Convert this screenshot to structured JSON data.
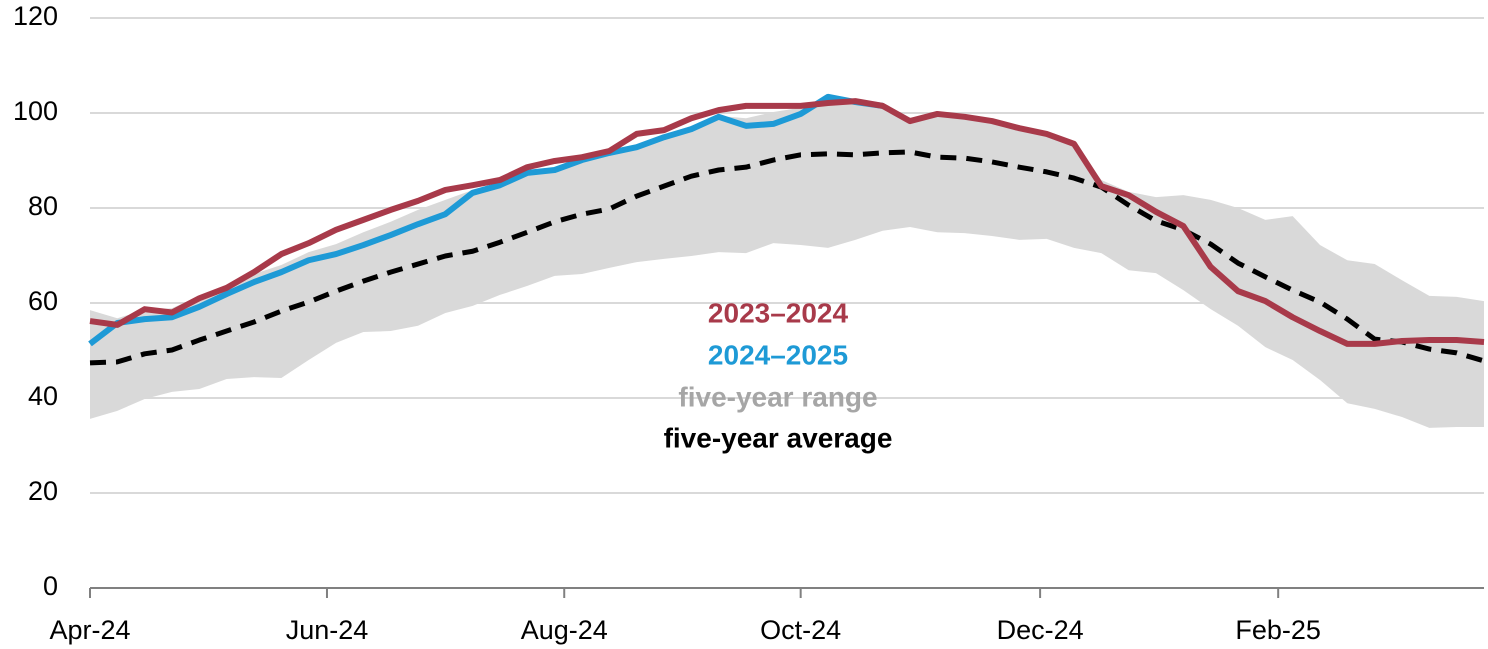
{
  "chart_data": {
    "type": "line",
    "x": [
      0,
      1,
      2,
      3,
      4,
      5,
      6,
      7,
      8,
      9,
      10,
      11,
      12,
      13,
      14,
      15,
      16,
      17,
      18,
      19,
      20,
      21,
      22,
      23,
      24,
      25,
      26,
      27,
      28,
      29,
      30,
      31,
      32,
      33,
      34,
      35,
      36,
      37,
      38,
      39,
      40,
      41,
      42,
      43,
      44,
      45,
      46,
      47,
      48,
      49,
      50,
      51
    ],
    "xlim": [
      0,
      51
    ],
    "xticks": [
      {
        "value": 0,
        "label": "Apr-24"
      },
      {
        "value": 8.67,
        "label": "Jun-24"
      },
      {
        "value": 17.35,
        "label": "Aug-24"
      },
      {
        "value": 26,
        "label": "Oct-24"
      },
      {
        "value": 34.76,
        "label": "Dec-24"
      },
      {
        "value": 43.47,
        "label": "Feb-25"
      }
    ],
    "ylim": [
      0,
      120
    ],
    "yticks": [
      0,
      20,
      40,
      60,
      80,
      100,
      120
    ],
    "grid": true,
    "series": [
      {
        "name": "2023–2024",
        "color": "#a83a4a",
        "values": [
          56.2,
          55.4,
          58.7,
          58,
          61,
          63.2,
          66.5,
          70.3,
          72.6,
          75.4,
          77.5,
          79.6,
          81.5,
          83.8,
          84.8,
          85.9,
          88.6,
          89.9,
          90.7,
          92,
          95.6,
          96.4,
          98.9,
          100.6,
          101.5,
          101.5,
          101.5,
          102.1,
          102.5,
          101.5,
          98.3,
          99.8,
          99.2,
          98.3,
          96.8,
          95.6,
          93.5,
          84.6,
          82.7,
          79.2,
          76.2,
          67.6,
          62.5,
          60.4,
          57,
          54.1,
          51.4,
          51.4,
          52,
          52.2,
          52.2,
          51.8
        ]
      },
      {
        "name": "2024–2025",
        "color": "#1e9ad6",
        "values": [
          51.4,
          55.8,
          56.6,
          57,
          59.2,
          61.9,
          64.4,
          66.5,
          69,
          70.3,
          72.2,
          74.3,
          76.6,
          78.7,
          83.2,
          84.8,
          87.4,
          88,
          90.1,
          91.6,
          92.8,
          94.9,
          96.6,
          99.2,
          97.3,
          97.7,
          99.8,
          103.4,
          102.3,
          101.5,
          null,
          null,
          null,
          null,
          null,
          null,
          null,
          null,
          null,
          null,
          null,
          null,
          null,
          null,
          null,
          null,
          null,
          null,
          null,
          null,
          null,
          null
        ]
      },
      {
        "name": "five-year range",
        "color": "#d9d9d9",
        "type": "band",
        "upper": [
          58.5,
          56.8,
          58.5,
          58.9,
          61.5,
          63.4,
          66.1,
          68,
          70.7,
          72.4,
          74.9,
          77.1,
          79.6,
          81.7,
          83.8,
          85.3,
          87.6,
          88.4,
          90.5,
          91.8,
          93.3,
          95.4,
          97.3,
          99.4,
          98.9,
          100.2,
          101.1,
          103.4,
          102.7,
          101.7,
          98.9,
          100.2,
          99.6,
          98.5,
          97.3,
          95.8,
          93.7,
          85.9,
          83.4,
          82.3,
          82.7,
          81.7,
          80,
          77.5,
          78.3,
          72.2,
          69,
          68.2,
          64.8,
          61.5,
          61.3,
          60.4
        ],
        "lower": [
          35.6,
          37.3,
          39.8,
          41.3,
          41.9,
          44,
          44.4,
          44.2,
          48,
          51.6,
          53.9,
          54.1,
          55.2,
          57.9,
          59.4,
          61.7,
          63.6,
          65.7,
          66.1,
          67.4,
          68.6,
          69.3,
          69.9,
          70.7,
          70.5,
          72.6,
          72.2,
          71.6,
          73.3,
          75.2,
          76,
          74.9,
          74.7,
          74.1,
          73.3,
          73.5,
          71.6,
          70.5,
          66.9,
          66.3,
          62.7,
          58.7,
          55.2,
          50.7,
          48,
          43.8,
          38.9,
          37.7,
          36,
          33.7,
          33.9,
          33.9
        ]
      },
      {
        "name": "five-year average",
        "color": "#000000",
        "dashed": true,
        "values": [
          47.4,
          47.6,
          49.3,
          50.1,
          52.2,
          54.1,
          56,
          58.3,
          60.2,
          62.5,
          64.6,
          66.5,
          68.2,
          69.9,
          70.9,
          72.8,
          74.9,
          77.1,
          78.7,
          79.8,
          82.5,
          84.6,
          86.7,
          88,
          88.6,
          90.1,
          91.2,
          91.4,
          91.2,
          91.6,
          91.8,
          90.7,
          90.5,
          89.7,
          88.6,
          87.6,
          86.3,
          84.4,
          80.6,
          77.3,
          75.4,
          72.4,
          68.4,
          65.5,
          62.7,
          60.2,
          56.6,
          52.4,
          51.8,
          50.3,
          49.5,
          47.8
        ]
      }
    ]
  }
}
